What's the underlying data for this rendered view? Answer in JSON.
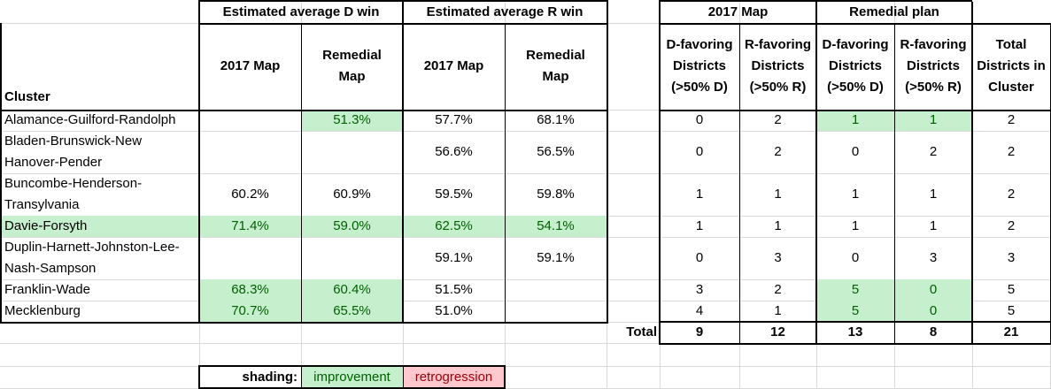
{
  "header": {
    "d_win": "Estimated average D win",
    "r_win": "Estimated average R win",
    "map2017": "2017 Map",
    "remedial_plan": "Remedial plan"
  },
  "subheader": {
    "cluster": "Cluster",
    "d_2017": "2017 Map",
    "d_rem_1": "Remedial",
    "d_rem_2": "Map",
    "r_2017": "2017 Map",
    "r_rem_1": "Remedial",
    "r_rem_2": "Map",
    "dfav_a": "D-favoring",
    "dfav_b": "Districts",
    "dfav_c": "(>50% D)",
    "rfav_a": "R-favoring",
    "rfav_b": "Districts",
    "rfav_c": "(>50% R)",
    "total_a": "Total",
    "total_b": "Districts in",
    "total_c": "Cluster"
  },
  "rows": [
    {
      "line1": "Alamance-Guilford-Randolph",
      "line2": "",
      "d2017": "",
      "drem": "51.3%",
      "r2017": "57.7%",
      "rrem": "68.1%",
      "m17d": "0",
      "m17r": "2",
      "remd": "1",
      "remr": "1",
      "total": "2"
    },
    {
      "line1": "Bladen-Brunswick-New",
      "line2": "Hanover-Pender",
      "d2017": "",
      "drem": "",
      "r2017": "56.6%",
      "rrem": "56.5%",
      "m17d": "0",
      "m17r": "2",
      "remd": "0",
      "remr": "2",
      "total": "2"
    },
    {
      "line1": "Buncombe-Henderson-",
      "line2": "Transylvania",
      "d2017": "60.2%",
      "drem": "60.9%",
      "r2017": "59.5%",
      "rrem": "59.8%",
      "m17d": "1",
      "m17r": "1",
      "remd": "1",
      "remr": "1",
      "total": "2"
    },
    {
      "line1": "Davie-Forsyth",
      "line2": "",
      "d2017": "71.4%",
      "drem": "59.0%",
      "r2017": "62.5%",
      "rrem": "54.1%",
      "m17d": "1",
      "m17r": "1",
      "remd": "1",
      "remr": "1",
      "total": "2"
    },
    {
      "line1": "Duplin-Harnett-Johnston-Lee-",
      "line2": "Nash-Sampson",
      "d2017": "",
      "drem": "",
      "r2017": "59.1%",
      "rrem": "59.1%",
      "m17d": "0",
      "m17r": "3",
      "remd": "0",
      "remr": "3",
      "total": "3"
    },
    {
      "line1": "Franklin-Wade",
      "line2": "",
      "d2017": "68.3%",
      "drem": "60.4%",
      "r2017": "51.5%",
      "rrem": "",
      "m17d": "3",
      "m17r": "2",
      "remd": "5",
      "remr": "0",
      "total": "5"
    },
    {
      "line1": "Mecklenburg",
      "line2": "",
      "d2017": "70.7%",
      "drem": "65.5%",
      "r2017": "51.0%",
      "rrem": "",
      "m17d": "4",
      "m17r": "1",
      "remd": "5",
      "remr": "0",
      "total": "5"
    }
  ],
  "totals": {
    "label": "Total",
    "m17d": "9",
    "m17r": "12",
    "remd": "13",
    "remr": "8",
    "total": "21"
  },
  "legend": {
    "label": "shading:",
    "improvement": "improvement",
    "retrogression": "retrogression"
  },
  "colors": {
    "improvement_fill": "#c6efce",
    "improvement_text": "#006100",
    "retrogression_fill": "#ffc7ce",
    "retrogression_text": "#9c0006",
    "gridline": "#d9d9d9"
  }
}
